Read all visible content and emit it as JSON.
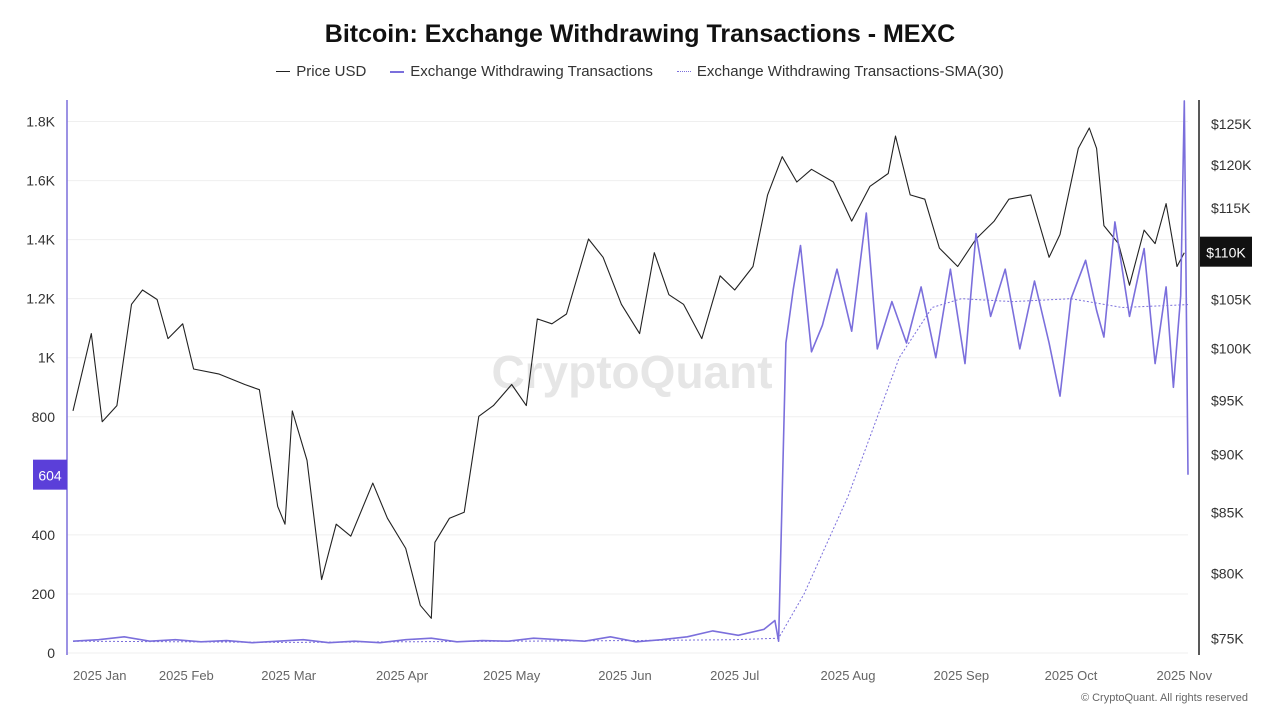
{
  "header": {
    "title": "Bitcoin: Exchange Withdrawing Transactions - MEXC"
  },
  "legend": [
    {
      "label": "Price USD",
      "color": "#222222",
      "style": "solid"
    },
    {
      "label": "Exchange Withdrawing Transactions",
      "color": "#7b6fdc",
      "style": "solid"
    },
    {
      "label": "Exchange Withdrawing Transactions-SMA(30)",
      "color": "#7b6fdc",
      "style": "dotted"
    }
  ],
  "watermark": "CryptoQuant",
  "footer": {
    "copyright": "© CryptoQuant. All rights reserved"
  },
  "chart_data": {
    "type": "line",
    "title": "Bitcoin: Exchange Withdrawing Transactions - MEXC",
    "x_range": [
      "2025-01-01",
      "2025-11-02"
    ],
    "x_ticks": [
      "2025 Jan",
      "2025 Feb",
      "2025 Mar",
      "2025 Apr",
      "2025 May",
      "2025 Jun",
      "2025 Jul",
      "2025 Aug",
      "2025 Sep",
      "2025 Oct",
      "2025 Nov"
    ],
    "y_left": {
      "range": [
        0,
        1900
      ],
      "ticks": [
        0,
        200,
        400,
        800,
        1000,
        1200,
        1400,
        1600,
        1800
      ],
      "tick_labels": [
        "0",
        "200",
        "400",
        "800",
        "1K",
        "1.2K",
        "1.4K",
        "1.6K",
        "1.8K"
      ]
    },
    "y_right": {
      "scale": "log",
      "range": [
        74500,
        127000
      ],
      "ticks": [
        75000,
        80000,
        85000,
        90000,
        95000,
        100000,
        105000,
        115000,
        120000,
        125000
      ],
      "tick_labels": [
        "$75K",
        "$80K",
        "$85K",
        "$90K",
        "$95K",
        "$100K",
        "$105K",
        "$115K",
        "$120K",
        "$125K"
      ]
    },
    "last_value_badges": {
      "left": {
        "value": 604,
        "label": "604",
        "color": "#5b3fd9"
      },
      "right": {
        "value": 110000,
        "label": "$110K",
        "color": "#111111"
      }
    },
    "grid": "horizontal",
    "legend_position": "top-center",
    "series": [
      {
        "name": "Price USD",
        "axis": "right",
        "color": "#222222",
        "style": "solid",
        "points": [
          [
            "2025-01-01",
            94000
          ],
          [
            "2025-01-06",
            101500
          ],
          [
            "2025-01-09",
            93000
          ],
          [
            "2025-01-13",
            94500
          ],
          [
            "2025-01-17",
            104500
          ],
          [
            "2025-01-20",
            106000
          ],
          [
            "2025-01-24",
            105000
          ],
          [
            "2025-01-27",
            101000
          ],
          [
            "2025-01-31",
            102500
          ],
          [
            "2025-02-03",
            98000
          ],
          [
            "2025-02-10",
            97500
          ],
          [
            "2025-02-17",
            96500
          ],
          [
            "2025-02-21",
            96000
          ],
          [
            "2025-02-26",
            85500
          ],
          [
            "2025-02-28",
            84000
          ],
          [
            "2025-03-02",
            94000
          ],
          [
            "2025-03-06",
            89500
          ],
          [
            "2025-03-10",
            79500
          ],
          [
            "2025-03-14",
            84000
          ],
          [
            "2025-03-18",
            83000
          ],
          [
            "2025-03-24",
            87500
          ],
          [
            "2025-03-28",
            84500
          ],
          [
            "2025-04-02",
            82000
          ],
          [
            "2025-04-06",
            77500
          ],
          [
            "2025-04-09",
            76500
          ],
          [
            "2025-04-10",
            82500
          ],
          [
            "2025-04-14",
            84500
          ],
          [
            "2025-04-18",
            85000
          ],
          [
            "2025-04-22",
            93500
          ],
          [
            "2025-04-26",
            94500
          ],
          [
            "2025-05-01",
            96500
          ],
          [
            "2025-05-05",
            94500
          ],
          [
            "2025-05-08",
            103000
          ],
          [
            "2025-05-12",
            102500
          ],
          [
            "2025-05-16",
            103500
          ],
          [
            "2025-05-22",
            111500
          ],
          [
            "2025-05-26",
            109500
          ],
          [
            "2025-05-31",
            104500
          ],
          [
            "2025-06-05",
            101500
          ],
          [
            "2025-06-09",
            110000
          ],
          [
            "2025-06-13",
            105500
          ],
          [
            "2025-06-17",
            104500
          ],
          [
            "2025-06-22",
            101000
          ],
          [
            "2025-06-27",
            107500
          ],
          [
            "2025-07-01",
            106000
          ],
          [
            "2025-07-06",
            108500
          ],
          [
            "2025-07-10",
            116500
          ],
          [
            "2025-07-14",
            121000
          ],
          [
            "2025-07-18",
            118000
          ],
          [
            "2025-07-22",
            119500
          ],
          [
            "2025-07-28",
            118000
          ],
          [
            "2025-08-02",
            113500
          ],
          [
            "2025-08-07",
            117500
          ],
          [
            "2025-08-12",
            119000
          ],
          [
            "2025-08-14",
            123500
          ],
          [
            "2025-08-18",
            116500
          ],
          [
            "2025-08-22",
            116000
          ],
          [
            "2025-08-26",
            110500
          ],
          [
            "2025-08-31",
            108500
          ],
          [
            "2025-09-05",
            111500
          ],
          [
            "2025-09-10",
            113500
          ],
          [
            "2025-09-14",
            116000
          ],
          [
            "2025-09-20",
            116500
          ],
          [
            "2025-09-25",
            109500
          ],
          [
            "2025-09-28",
            112000
          ],
          [
            "2025-10-03",
            122000
          ],
          [
            "2025-10-06",
            124500
          ],
          [
            "2025-10-08",
            122000
          ],
          [
            "2025-10-10",
            113000
          ],
          [
            "2025-10-14",
            111000
          ],
          [
            "2025-10-17",
            106500
          ],
          [
            "2025-10-21",
            112500
          ],
          [
            "2025-10-24",
            111000
          ],
          [
            "2025-10-27",
            115500
          ],
          [
            "2025-10-30",
            108500
          ],
          [
            "2025-11-01",
            110000
          ]
        ]
      },
      {
        "name": "Exchange Withdrawing Transactions",
        "axis": "left",
        "color": "#7b6fdc",
        "style": "solid",
        "points": [
          [
            "2025-01-01",
            40
          ],
          [
            "2025-01-08",
            45
          ],
          [
            "2025-01-15",
            55
          ],
          [
            "2025-01-22",
            40
          ],
          [
            "2025-01-29",
            45
          ],
          [
            "2025-02-05",
            38
          ],
          [
            "2025-02-12",
            42
          ],
          [
            "2025-02-19",
            35
          ],
          [
            "2025-02-26",
            40
          ],
          [
            "2025-03-05",
            45
          ],
          [
            "2025-03-12",
            35
          ],
          [
            "2025-03-19",
            40
          ],
          [
            "2025-03-26",
            35
          ],
          [
            "2025-04-02",
            45
          ],
          [
            "2025-04-09",
            50
          ],
          [
            "2025-04-16",
            38
          ],
          [
            "2025-04-23",
            42
          ],
          [
            "2025-04-30",
            40
          ],
          [
            "2025-05-07",
            50
          ],
          [
            "2025-05-14",
            45
          ],
          [
            "2025-05-21",
            40
          ],
          [
            "2025-05-28",
            55
          ],
          [
            "2025-06-04",
            38
          ],
          [
            "2025-06-11",
            45
          ],
          [
            "2025-06-18",
            55
          ],
          [
            "2025-06-25",
            75
          ],
          [
            "2025-07-02",
            60
          ],
          [
            "2025-07-09",
            80
          ],
          [
            "2025-07-12",
            110
          ],
          [
            "2025-07-13",
            40
          ],
          [
            "2025-07-15",
            1050
          ],
          [
            "2025-07-17",
            1230
          ],
          [
            "2025-07-19",
            1380
          ],
          [
            "2025-07-22",
            1020
          ],
          [
            "2025-07-25",
            1110
          ],
          [
            "2025-07-29",
            1300
          ],
          [
            "2025-08-02",
            1090
          ],
          [
            "2025-08-06",
            1490
          ],
          [
            "2025-08-09",
            1030
          ],
          [
            "2025-08-13",
            1190
          ],
          [
            "2025-08-17",
            1050
          ],
          [
            "2025-08-21",
            1240
          ],
          [
            "2025-08-25",
            1000
          ],
          [
            "2025-08-29",
            1300
          ],
          [
            "2025-09-02",
            980
          ],
          [
            "2025-09-05",
            1420
          ],
          [
            "2025-09-09",
            1140
          ],
          [
            "2025-09-13",
            1300
          ],
          [
            "2025-09-17",
            1030
          ],
          [
            "2025-09-21",
            1260
          ],
          [
            "2025-09-25",
            1050
          ],
          [
            "2025-09-28",
            870
          ],
          [
            "2025-10-01",
            1200
          ],
          [
            "2025-10-05",
            1330
          ],
          [
            "2025-10-08",
            1160
          ],
          [
            "2025-10-10",
            1070
          ],
          [
            "2025-10-13",
            1460
          ],
          [
            "2025-10-17",
            1140
          ],
          [
            "2025-10-21",
            1370
          ],
          [
            "2025-10-24",
            980
          ],
          [
            "2025-10-27",
            1240
          ],
          [
            "2025-10-29",
            900
          ],
          [
            "2025-10-31",
            1210
          ],
          [
            "2025-11-01",
            1870
          ],
          [
            "2025-11-02",
            604
          ]
        ]
      },
      {
        "name": "Exchange Withdrawing Transactions-SMA(30)",
        "axis": "left",
        "color": "#7b6fdc",
        "style": "dotted",
        "points": [
          [
            "2025-01-01",
            40
          ],
          [
            "2025-02-01",
            38
          ],
          [
            "2025-03-01",
            36
          ],
          [
            "2025-04-01",
            38
          ],
          [
            "2025-05-01",
            40
          ],
          [
            "2025-06-01",
            42
          ],
          [
            "2025-07-01",
            45
          ],
          [
            "2025-07-13",
            50
          ],
          [
            "2025-07-20",
            200
          ],
          [
            "2025-08-01",
            530
          ],
          [
            "2025-08-15",
            1000
          ],
          [
            "2025-08-24",
            1170
          ],
          [
            "2025-09-01",
            1200
          ],
          [
            "2025-09-15",
            1190
          ],
          [
            "2025-10-01",
            1200
          ],
          [
            "2025-10-15",
            1170
          ],
          [
            "2025-11-02",
            1180
          ]
        ]
      }
    ]
  }
}
